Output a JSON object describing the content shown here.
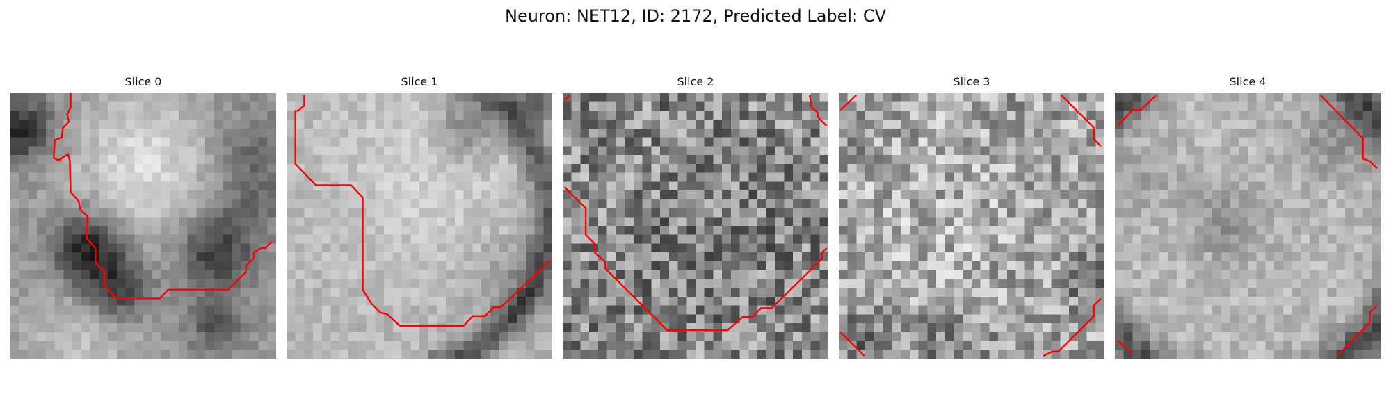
{
  "figure": {
    "title": "Neuron: NET12, ID: 2172, Predicted Label: CV"
  },
  "colors": {
    "contour": "#ff0000",
    "background": "#ffffff"
  },
  "slices": [
    {
      "title": "Slice 0",
      "texture": "blob"
    },
    {
      "title": "Slice 1",
      "texture": "bright-soma"
    },
    {
      "title": "Slice 2",
      "texture": "noise"
    },
    {
      "title": "Slice 3",
      "texture": "noise-light"
    },
    {
      "title": "Slice 4",
      "texture": "ring"
    }
  ]
}
